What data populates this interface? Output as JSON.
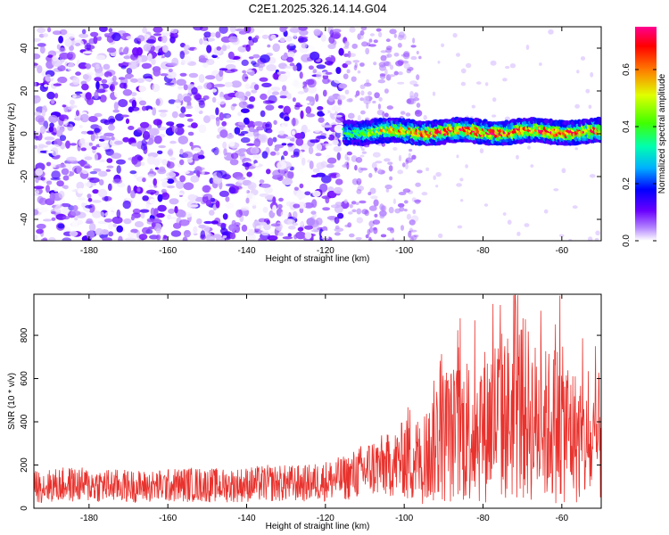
{
  "figure_title": "C2E1.2025.326.14.14.G04",
  "chart_data": [
    {
      "type": "heatmap",
      "title": "C2E1.2025.326.14.14.G04",
      "xlabel": "Height of straight line (km)",
      "ylabel": "Frequency (Hz)",
      "xlim": [
        -194,
        -50
      ],
      "ylim": [
        -50,
        50
      ],
      "xticks": [
        -180,
        -160,
        -140,
        -120,
        -100,
        -80,
        -60
      ],
      "yticks": [
        -40,
        -20,
        0,
        20,
        40
      ],
      "grid": false,
      "description_regions": [
        {
          "x_range": [
            -194,
            -115
          ],
          "freq_range": [
            -50,
            50
          ],
          "normalized_amplitude": [
            0.0,
            0.15
          ]
        },
        {
          "x_range": [
            -115,
            -96
          ],
          "freq_range": [
            -50,
            50
          ],
          "normalized_amplitude": [
            0.0,
            0.05
          ]
        },
        {
          "x_range": [
            -115,
            -50
          ],
          "freq_range": [
            -3,
            5
          ],
          "normalized_amplitude": [
            0.15,
            0.75
          ]
        }
      ],
      "colorbar": {
        "label": "Normalized spectral amplitude",
        "range": [
          0.0,
          0.75
        ],
        "ticks": [
          0.0,
          0.2,
          0.4,
          0.6
        ]
      }
    },
    {
      "type": "line",
      "xlabel": "Height of straight line (km)",
      "ylabel": "SNR (10 * v/v)",
      "xlim": [
        -194,
        -50
      ],
      "ylim": [
        0,
        990
      ],
      "xticks": [
        -180,
        -160,
        -140,
        -120,
        -100,
        -80,
        -60
      ],
      "yticks": [
        0,
        200,
        400,
        600,
        800
      ],
      "grid": false,
      "series": [
        {
          "name": "SNR",
          "color": "#e8322d",
          "x": [
            -194,
            -185,
            -175,
            -165,
            -155,
            -145,
            -135,
            -125,
            -115,
            -108,
            -103,
            -98,
            -95,
            -92,
            -88,
            -84,
            -80,
            -76,
            -73,
            -70,
            -67,
            -64,
            -61,
            -58,
            -55,
            -52,
            -50
          ],
          "y": [
            100,
            110,
            105,
            100,
            110,
            105,
            115,
            115,
            140,
            190,
            200,
            260,
            180,
            330,
            340,
            360,
            380,
            430,
            420,
            470,
            400,
            380,
            400,
            360,
            300,
            260,
            350
          ]
        }
      ]
    }
  ],
  "colors": {
    "snr_line": "#e8322d",
    "axis": "#000000"
  }
}
